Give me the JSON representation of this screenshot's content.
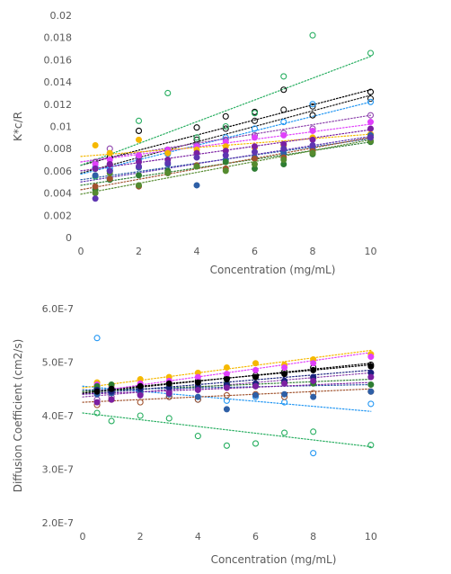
{
  "chart_data": [
    {
      "type": "scatter",
      "title": "",
      "xlabel": "Concentration (mg/mL)",
      "ylabel": "K*c/R",
      "xlim": [
        0,
        12
      ],
      "ylim": [
        0,
        0.02
      ],
      "xticks": [
        "0",
        "2",
        "4",
        "6",
        "8",
        "10"
      ],
      "yticks": [
        "0",
        "0.002",
        "0.004",
        "0.006",
        "0.008",
        "0.01",
        "0.012",
        "0.014",
        "0.016",
        "0.018",
        "0.02"
      ],
      "grid": false,
      "legend": "none",
      "trendlines": "linear, dotted",
      "series": [
        {
          "color": "#000000",
          "marker": "open-circle",
          "x": [
            0.5,
            1,
            2,
            3,
            4,
            5,
            6,
            7,
            8,
            10
          ],
          "y": [
            0.0068,
            0.0072,
            0.0096,
            0.0079,
            0.0099,
            0.0109,
            0.0113,
            0.0133,
            0.011,
            0.0131
          ],
          "trend": [
            0.0065,
            0.0133
          ]
        },
        {
          "color": "#1d1d1d",
          "marker": "open-circle",
          "x": [
            0.5,
            1,
            2,
            3,
            4,
            5,
            6,
            7,
            8,
            10
          ],
          "y": [
            0.0062,
            0.0066,
            0.0073,
            0.0078,
            0.0088,
            0.0098,
            0.0105,
            0.0115,
            0.0118,
            0.0125
          ],
          "trend": [
            0.0058,
            0.0128
          ]
        },
        {
          "color": "#27ae60",
          "marker": "open-circle",
          "x": [
            0.5,
            1,
            2,
            3,
            4,
            5,
            6,
            7,
            8,
            10
          ],
          "y": [
            0.0055,
            0.006,
            0.0105,
            0.013,
            0.009,
            0.01,
            0.0112,
            0.0145,
            0.0182,
            0.0166
          ],
          "trend": [
            0.0065,
            0.0163
          ]
        },
        {
          "color": "#2196f3",
          "marker": "open-circle",
          "x": [
            0.5,
            1,
            2,
            3,
            4,
            5,
            6,
            7,
            8,
            10
          ],
          "y": [
            0.0063,
            0.0062,
            0.007,
            0.0075,
            0.0082,
            0.009,
            0.0098,
            0.0104,
            0.012,
            0.0122
          ],
          "trend": [
            0.0057,
            0.0122
          ]
        },
        {
          "color": "#8e44ad",
          "marker": "open-circle",
          "x": [
            0.5,
            1,
            2,
            3,
            4,
            5,
            6,
            7,
            8,
            10
          ],
          "y": [
            0.0068,
            0.008,
            0.0072,
            0.0076,
            0.0083,
            0.0088,
            0.0092,
            0.0094,
            0.0098,
            0.011
          ],
          "trend": [
            0.0068,
            0.011
          ]
        },
        {
          "color": "#e040fb",
          "marker": "filled-circle",
          "x": [
            0.5,
            1,
            2,
            3,
            4,
            5,
            6,
            7,
            8,
            10
          ],
          "y": [
            0.0066,
            0.007,
            0.0074,
            0.0079,
            0.0082,
            0.0086,
            0.009,
            0.0092,
            0.0096,
            0.0104
          ],
          "trend": [
            0.0068,
            0.0102
          ]
        },
        {
          "color": "#f5b800",
          "marker": "filled-circle",
          "x": [
            0.5,
            1,
            2,
            3,
            4,
            5,
            6,
            7,
            8,
            10
          ],
          "y": [
            0.0083,
            0.0076,
            0.0088,
            0.0076,
            0.0079,
            0.0082,
            0.0081,
            0.0083,
            0.009,
            0.0093
          ],
          "trend": [
            0.0073,
            0.0093
          ]
        },
        {
          "color": "#7b1fa2",
          "marker": "filled-circle",
          "x": [
            0.5,
            1,
            2,
            3,
            4,
            5,
            6,
            7,
            8,
            10
          ],
          "y": [
            0.0062,
            0.0066,
            0.0068,
            0.007,
            0.0076,
            0.0078,
            0.0082,
            0.0084,
            0.0088,
            0.0098
          ],
          "trend": [
            0.006,
            0.0097
          ]
        },
        {
          "color": "#2e5fa6",
          "marker": "filled-circle",
          "x": [
            0.5,
            1,
            2,
            3,
            4,
            5,
            6,
            7,
            8,
            10
          ],
          "y": [
            0.0056,
            0.006,
            0.0063,
            0.0066,
            0.0047,
            0.007,
            0.0072,
            0.0076,
            0.008,
            0.0092
          ],
          "trend": [
            0.0052,
            0.0089
          ]
        },
        {
          "color": "#2e7d32",
          "marker": "filled-circle",
          "x": [
            0.5,
            1,
            2,
            3,
            4,
            5,
            6,
            7,
            8,
            10
          ],
          "y": [
            0.0043,
            0.0052,
            0.0056,
            0.006,
            0.0064,
            0.0068,
            0.0062,
            0.0066,
            0.0075,
            0.0086
          ],
          "trend": [
            0.0047,
            0.0086
          ]
        },
        {
          "color": "#a0522d",
          "marker": "filled-circle",
          "x": [
            0.5,
            1,
            2,
            3,
            4,
            5,
            6,
            7,
            8,
            10
          ],
          "y": [
            0.0046,
            0.0053,
            0.0046,
            0.0058,
            0.0065,
            0.0062,
            0.0071,
            0.0072,
            0.0078,
            0.009
          ],
          "trend": [
            0.0043,
            0.009
          ]
        },
        {
          "color": "#558b2f",
          "marker": "filled-circle",
          "x": [
            0.5,
            1,
            2,
            3,
            4,
            5,
            6,
            7,
            8,
            10
          ],
          "y": [
            0.004,
            0.0058,
            0.0047,
            0.0058,
            0.0064,
            0.006,
            0.0066,
            0.007,
            0.0076,
            0.0087
          ],
          "trend": [
            0.0039,
            0.0088
          ]
        },
        {
          "color": "#5e35b1",
          "marker": "filled-circle",
          "x": [
            0.5,
            1,
            2,
            3,
            4,
            5,
            6,
            7,
            8,
            10
          ],
          "y": [
            0.0035,
            0.006,
            0.0064,
            0.0067,
            0.0072,
            0.0074,
            0.0077,
            0.008,
            0.0083,
            0.009
          ],
          "trend": [
            0.005,
            0.0091
          ]
        }
      ]
    },
    {
      "type": "scatter",
      "title": "",
      "xlabel": "Concentration (mg/mL)",
      "ylabel": "Diffusion Coefficient (cm2/s)",
      "xlim": [
        0,
        12
      ],
      "ylim": [
        2e-07,
        6e-07
      ],
      "xticks": [
        "0",
        "2",
        "4",
        "6",
        "8",
        "10"
      ],
      "yticks": [
        "2.0E-7",
        "3.0E-7",
        "4.0E-7",
        "5.0E-7",
        "6.0E-7"
      ],
      "grid": false,
      "legend": "none",
      "trendlines": "linear, dotted",
      "series": [
        {
          "color": "#27ae60",
          "marker": "open-circle",
          "x": [
            0.5,
            1,
            2,
            3,
            4,
            5,
            6,
            7,
            8,
            10
          ],
          "y": [
            4.05e-07,
            3.9e-07,
            4e-07,
            3.95e-07,
            3.62e-07,
            3.44e-07,
            3.48e-07,
            3.68e-07,
            3.7e-07,
            3.45e-07
          ],
          "trend": [
            4.05e-07,
            3.42e-07
          ]
        },
        {
          "color": "#2196f3",
          "marker": "open-circle",
          "x": [
            0.5,
            1,
            2,
            3,
            4,
            5,
            6,
            7,
            8,
            10
          ],
          "y": [
            5.45e-07,
            4.5e-07,
            4.4e-07,
            4.35e-07,
            4.3e-07,
            4.28e-07,
            4.35e-07,
            4.25e-07,
            3.3e-07,
            4.22e-07
          ],
          "trend": [
            4.55e-07,
            4.08e-07
          ]
        },
        {
          "color": "#000000",
          "marker": "open-circle",
          "x": [
            0.5,
            1,
            2,
            3,
            4,
            5,
            6,
            7,
            8,
            10
          ],
          "y": [
            4.5e-07,
            4.48e-07,
            4.55e-07,
            4.6e-07,
            4.65e-07,
            4.7e-07,
            4.75e-07,
            4.82e-07,
            4.9e-07,
            4.95e-07
          ],
          "trend": [
            4.45e-07,
            4.95e-07
          ]
        },
        {
          "color": "#8e44ad",
          "marker": "open-circle",
          "x": [
            0.5,
            1,
            2,
            3,
            4,
            5,
            6,
            7,
            8,
            10
          ],
          "y": [
            4.3e-07,
            4.35e-07,
            4.4e-07,
            4.45e-07,
            4.5e-07,
            4.55e-07,
            4.6e-07,
            4.65e-07,
            4.7e-07,
            4.8e-07
          ],
          "trend": [
            4.35e-07,
            4.8e-07
          ]
        },
        {
          "color": "#a0522d",
          "marker": "open-circle",
          "x": [
            0.5,
            1,
            2,
            3,
            4,
            5,
            6,
            7,
            8,
            10
          ],
          "y": [
            4.2e-07,
            4.3e-07,
            4.25e-07,
            4.35e-07,
            4.3e-07,
            4.38e-07,
            4.4e-07,
            4.35e-07,
            4.42e-07,
            4.45e-07
          ],
          "trend": [
            4.25e-07,
            4.5e-07
          ]
        },
        {
          "color": "#f5b800",
          "marker": "filled-circle",
          "x": [
            0.5,
            1,
            2,
            3,
            4,
            5,
            6,
            7,
            8,
            10
          ],
          "y": [
            4.62e-07,
            4.55e-07,
            4.68e-07,
            4.72e-07,
            4.8e-07,
            4.9e-07,
            4.98e-07,
            4.95e-07,
            5.05e-07,
            5.15e-07
          ],
          "trend": [
            4.52e-07,
            5.22e-07
          ]
        },
        {
          "color": "#e040fb",
          "marker": "filled-circle",
          "x": [
            0.5,
            1,
            2,
            3,
            4,
            5,
            6,
            7,
            8,
            10
          ],
          "y": [
            4.58e-07,
            4.52e-07,
            4.6e-07,
            4.65e-07,
            4.72e-07,
            4.78e-07,
            4.85e-07,
            4.9e-07,
            4.98e-07,
            5.1e-07
          ],
          "trend": [
            4.42e-07,
            5.18e-07
          ]
        },
        {
          "color": "#2e7d32",
          "marker": "filled-circle",
          "x": [
            0.5,
            1,
            2,
            3,
            4,
            5,
            6,
            7,
            8,
            10
          ],
          "y": [
            4.55e-07,
            4.58e-07,
            4.5e-07,
            4.55e-07,
            4.52e-07,
            4.6e-07,
            4.55e-07,
            4.62e-07,
            4.6e-07,
            4.58e-07
          ],
          "trend": [
            4.45e-07,
            4.68e-07
          ]
        },
        {
          "color": "#2e5fa6",
          "marker": "filled-circle",
          "x": [
            0.5,
            1,
            2,
            3,
            4,
            5,
            6,
            7,
            8,
            10
          ],
          "y": [
            4.4e-07,
            4.42e-07,
            4.45e-07,
            4.4e-07,
            4.35e-07,
            4.12e-07,
            4.38e-07,
            4.4e-07,
            4.35e-07,
            4.45e-07
          ],
          "trend": [
            4.48e-07,
            4.58e-07
          ]
        },
        {
          "color": "#1a237e",
          "marker": "filled-circle",
          "x": [
            0.5,
            1,
            2,
            3,
            4,
            5,
            6,
            7,
            8,
            10
          ],
          "y": [
            4.48e-07,
            4.45e-07,
            4.5e-07,
            4.52e-07,
            4.55e-07,
            4.58e-07,
            4.6e-07,
            4.65e-07,
            4.72e-07,
            4.8e-07
          ],
          "trend": [
            4.4e-07,
            4.85e-07
          ]
        },
        {
          "color": "#7b1fa2",
          "marker": "filled-circle",
          "x": [
            0.5,
            1,
            2,
            3,
            4,
            5,
            6,
            7,
            8,
            10
          ],
          "y": [
            4.25e-07,
            4.3e-07,
            4.38e-07,
            4.42e-07,
            4.48e-07,
            4.52e-07,
            4.55e-07,
            4.6e-07,
            4.65e-07,
            4.72e-07
          ],
          "trend": [
            4.4e-07,
            4.62e-07
          ]
        },
        {
          "color": "#000000",
          "marker": "filled-circle",
          "x": [
            0.5,
            1,
            2,
            3,
            4,
            5,
            6,
            7,
            8,
            10
          ],
          "y": [
            4.45e-07,
            4.5e-07,
            4.55e-07,
            4.6e-07,
            4.62e-07,
            4.68e-07,
            4.72e-07,
            4.78e-07,
            4.85e-07,
            4.92e-07
          ],
          "trend": [
            4.42e-07,
            4.98e-07
          ]
        }
      ]
    }
  ]
}
